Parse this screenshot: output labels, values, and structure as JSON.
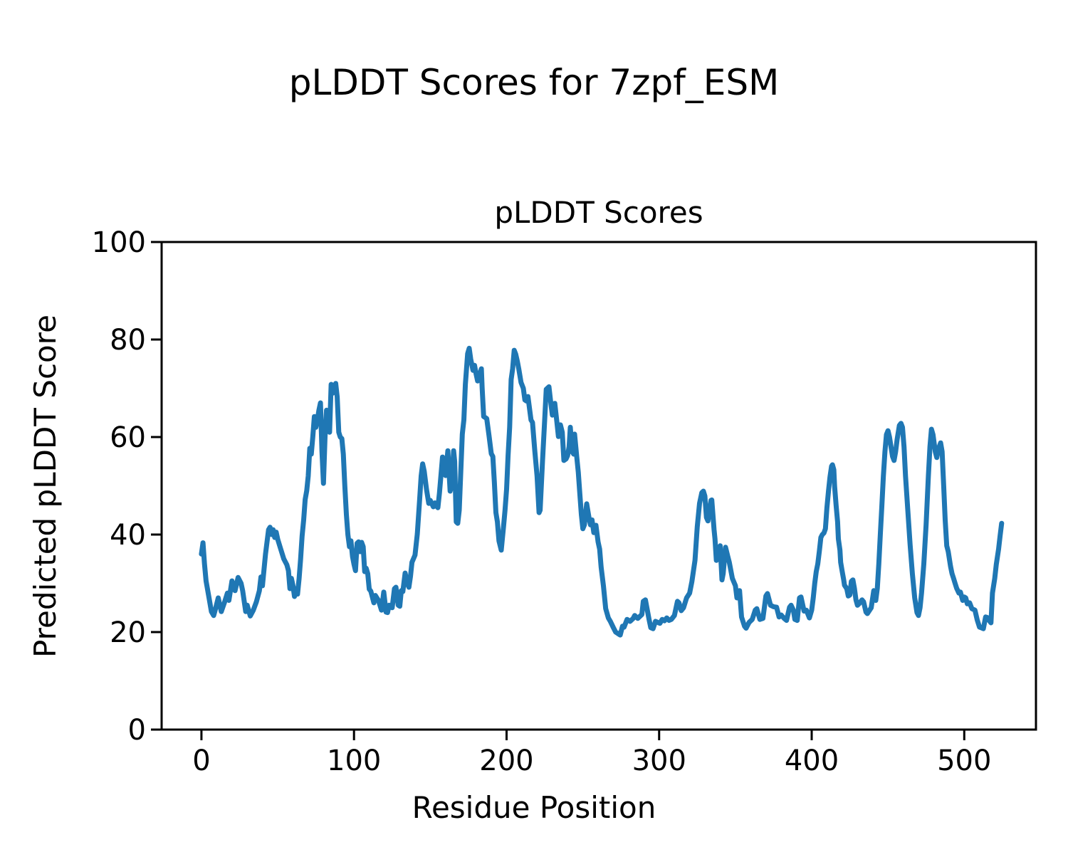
{
  "figure": {
    "suptitle": "pLDDT Scores for 7zpf_ESM",
    "axes_title": "pLDDT Scores",
    "xlabel": "Residue Position",
    "ylabel": "Predicted pLDDT Score"
  },
  "chart_data": {
    "type": "line",
    "title": "pLDDT Scores",
    "suptitle": "pLDDT Scores for 7zpf_ESM",
    "xlabel": "Residue Position",
    "ylabel": "Predicted pLDDT Score",
    "xlim": [
      -26.1,
      547.0
    ],
    "ylim": [
      0,
      100
    ],
    "xticks": [
      0,
      100,
      200,
      300,
      400,
      500
    ],
    "yticks": [
      0,
      20,
      40,
      60,
      80,
      100
    ],
    "grid": false,
    "legend": null,
    "line_color": "#1f77b4",
    "axis_color": "#000000",
    "line_width": 7,
    "series": [
      {
        "name": "pLDDT",
        "x": [
          0,
          1,
          2,
          3,
          5,
          6.5,
          8,
          9,
          11,
          13,
          15,
          17,
          18,
          20,
          22,
          24,
          26,
          27,
          29,
          30,
          32,
          34,
          36,
          38,
          39,
          40,
          42,
          44,
          45,
          46,
          47,
          48,
          49,
          50,
          52,
          54,
          56,
          57,
          58,
          59,
          60,
          61,
          62,
          63,
          64,
          65,
          66,
          67,
          68,
          69,
          70,
          71,
          72,
          73,
          74,
          75,
          76,
          77,
          78,
          79,
          80,
          81,
          82,
          83,
          84,
          85,
          86,
          87,
          88,
          89,
          90,
          91,
          92,
          93,
          94,
          95,
          96,
          97,
          98,
          99,
          100,
          101,
          102,
          103,
          104,
          105,
          106,
          107,
          108,
          109,
          110,
          111,
          113,
          114,
          116,
          118,
          119.5,
          121,
          122,
          123,
          125,
          126.5,
          127.5,
          129,
          130,
          131,
          132,
          133.5,
          135,
          136,
          137,
          138,
          140,
          141.5,
          143,
          144,
          145,
          146,
          147.5,
          149,
          150,
          152,
          153,
          155,
          156,
          158,
          159,
          160,
          161.5,
          163,
          164,
          165.3,
          166,
          167,
          168,
          169,
          170,
          171,
          172,
          173,
          174.5,
          175.5,
          176.5,
          178,
          179,
          180,
          181,
          182,
          183.5,
          184,
          185,
          186,
          187,
          188.5,
          190,
          191,
          192,
          193,
          194,
          195,
          196.5,
          198,
          199,
          200,
          201,
          202,
          203,
          204,
          205,
          206,
          207,
          208,
          209.5,
          211,
          212,
          213,
          214,
          216,
          217,
          218.5,
          220,
          221.3,
          222,
          223.6,
          225,
          226,
          227.8,
          229,
          230,
          231.6,
          233,
          234,
          235.3,
          236.5,
          237.6,
          239,
          240,
          241,
          241.8,
          243,
          244,
          244.6,
          246,
          247,
          248,
          249,
          250,
          251,
          252.5,
          254,
          255,
          256,
          257.2,
          258.6,
          260,
          261,
          262,
          263.5,
          265,
          266.7,
          268,
          270,
          271.5,
          273,
          274.5,
          276,
          277,
          279,
          281,
          283,
          284,
          286,
          288.7,
          289.6,
          291,
          293.4,
          294.5,
          296,
          297.6,
          299,
          300.5,
          302,
          303.5,
          305,
          306.5,
          308,
          310,
          312,
          313,
          314.5,
          316,
          318,
          320,
          321.5,
          323.5,
          325,
          326.5,
          328,
          329,
          330,
          331,
          332,
          334,
          334.5,
          336,
          336.6,
          337.5,
          339,
          340,
          341.2,
          342,
          343.5,
          345,
          346,
          348,
          350,
          351,
          352.7,
          354,
          356,
          357,
          359,
          361,
          363,
          364,
          366,
          368,
          370,
          371,
          373,
          375,
          377,
          378.6,
          380,
          382,
          383.5,
          385.5,
          386.5,
          388,
          389,
          390.5,
          392,
          393,
          395,
          396.5,
          398.5,
          400,
          401,
          402,
          403,
          404,
          405,
          406,
          407,
          408,
          409,
          410,
          411,
          412,
          413,
          413.6,
          414.5,
          415,
          416,
          417,
          417.5,
          418.5,
          419,
          420,
          421,
          421.5,
          423,
          424,
          425,
          426,
          427,
          428,
          429,
          430,
          431,
          433,
          434,
          435.6,
          436.5,
          438,
          439,
          440.7,
          441.5,
          442,
          443,
          444,
          445,
          446,
          447,
          448,
          449,
          450,
          451,
          452,
          453,
          454,
          455,
          456,
          457.5,
          458.5,
          459.5,
          460.5,
          461.5,
          463,
          464.5,
          466,
          467.5,
          469,
          470,
          471,
          472,
          473.5,
          475,
          476.5,
          477.5,
          478.5,
          479.5,
          481,
          482,
          483,
          484.5,
          485.5,
          486.5,
          487.5,
          488.5,
          489.5,
          491,
          492,
          493,
          494,
          495,
          496.5,
          497.5,
          499,
          500,
          501,
          502,
          503.5,
          505,
          507,
          508.5,
          510,
          511,
          512.5,
          514,
          515,
          516,
          517.5,
          518.5,
          520,
          521,
          522.5,
          523.5,
          524.5
        ],
        "y": [
          36,
          38.3,
          34,
          30.5,
          27,
          24.2,
          23.4,
          24.5,
          27,
          24.2,
          26,
          28,
          26.5,
          30.5,
          28.5,
          31.2,
          30,
          28.5,
          24.2,
          25.5,
          23.3,
          24.5,
          26.2,
          28.5,
          31.3,
          29.5,
          36,
          41,
          41.5,
          40,
          41,
          39.4,
          40.5,
          39,
          37,
          35,
          33.8,
          32.6,
          28.9,
          31,
          29.5,
          27.3,
          28.9,
          27.8,
          31,
          35,
          39.7,
          43,
          47.2,
          49,
          52,
          57.7,
          56.5,
          60,
          64.2,
          62,
          63.5,
          65.5,
          67,
          57,
          50.5,
          60,
          65.5,
          65,
          61,
          70.8,
          69,
          69.4,
          71,
          68.2,
          61,
          60,
          59.7,
          56.5,
          50,
          44.1,
          40,
          37.5,
          38.7,
          35.5,
          33.9,
          32.6,
          38.2,
          38.5,
          36.5,
          38.4,
          37.5,
          32.4,
          33.1,
          32,
          28.8,
          28.4,
          26,
          27.5,
          26.5,
          24.5,
          28.2,
          24.1,
          24,
          25.5,
          25,
          28.9,
          29.2,
          25.5,
          25.3,
          28.5,
          28.3,
          32.1,
          30,
          29.2,
          31.4,
          34.3,
          35.8,
          40.1,
          47,
          52,
          54.5,
          53,
          49.3,
          46.4,
          47,
          45.7,
          46.5,
          45.5,
          48.5,
          55.9,
          53,
          52.1,
          57.2,
          48.9,
          50,
          57.2,
          55,
          42.6,
          42.3,
          45,
          53,
          60.6,
          63.5,
          70.8,
          77.1,
          78.2,
          76,
          73.7,
          74.7,
          73,
          71.5,
          72.5,
          74,
          70,
          64.2,
          64,
          63.8,
          60.3,
          56.6,
          56,
          50.8,
          44.5,
          42.6,
          38.7,
          36.8,
          41.6,
          45,
          49.3,
          56.2,
          62,
          71.8,
          74,
          77.8,
          77,
          75.6,
          74,
          71.2,
          70,
          67.6,
          67.4,
          68.3,
          63.5,
          63,
          57.2,
          52,
          44.5,
          45,
          55.2,
          63.5,
          69.8,
          70.3,
          67,
          64.5,
          66.9,
          63,
          60.1,
          62.5,
          61,
          55.2,
          55.5,
          56.2,
          58,
          62,
          57,
          56.5,
          60.6,
          56,
          52.8,
          48.5,
          44.1,
          41.2,
          42,
          46.3,
          43.5,
          42,
          43,
          40.4,
          41.9,
          38.5,
          37,
          33.3,
          29.5,
          24.8,
          22.9,
          22.2,
          20.9,
          20,
          19.7,
          19.4,
          21.2,
          21,
          22.6,
          22.2,
          22.8,
          23.4,
          22.8,
          23.6,
          26.3,
          26.6,
          22.6,
          20.9,
          20.7,
          22.2,
          22,
          21.8,
          22.6,
          22.3,
          22.9,
          22.4,
          22.6,
          23.4,
          26.3,
          26,
          24.4,
          25,
          27,
          28,
          30.4,
          34.7,
          41.6,
          46.4,
          48.6,
          48.9,
          47.9,
          43.5,
          42.8,
          47,
          47.1,
          41,
          39.1,
          34.7,
          36,
          37.7,
          30.7,
          32,
          37.4,
          35.5,
          34.3,
          31,
          29.5,
          27,
          28.5,
          23.1,
          21.2,
          20.8,
          22,
          22.6,
          24.5,
          24.8,
          22.6,
          22.8,
          27.4,
          27.9,
          25.5,
          25.2,
          25.1,
          23.1,
          23.5,
          22.8,
          22.4,
          25.1,
          25.5,
          24.5,
          22.6,
          22.4,
          27,
          27.2,
          24.3,
          24.5,
          22.9,
          24.5,
          27,
          30,
          32.4,
          34,
          36.5,
          39.4,
          40,
          40.3,
          41.2,
          45.5,
          48.9,
          51.8,
          54,
          54.3,
          53.3,
          49.9,
          46,
          42.6,
          39.1,
          36.8,
          34.3,
          32.4,
          30.7,
          29.6,
          28.9,
          27.4,
          27.6,
          30.4,
          30.7,
          29,
          26.6,
          25.5,
          25.8,
          26.6,
          26.2,
          24.1,
          23.8,
          24.5,
          25,
          28.5,
          27.5,
          26.5,
          29,
          34,
          40,
          46,
          52,
          57,
          60.5,
          61.3,
          60,
          58,
          56,
          55.2,
          57,
          59.5,
          62.4,
          62.8,
          62,
          58,
          52,
          45,
          38,
          32,
          27,
          24,
          23.4,
          25,
          28,
          34,
          42,
          52,
          58,
          61.6,
          60.5,
          57,
          55.8,
          57.5,
          58.8,
          57,
          50,
          43,
          37.7,
          36.5,
          33.5,
          32,
          31,
          30,
          29,
          28,
          28.2,
          26.5,
          27.2,
          27,
          25.8,
          26,
          24.8,
          24.5,
          22.5,
          21,
          20.9,
          20.7,
          23.1,
          23,
          22.5,
          21.9,
          28,
          31,
          33.9,
          37,
          39.7,
          42.3
        ]
      }
    ]
  }
}
